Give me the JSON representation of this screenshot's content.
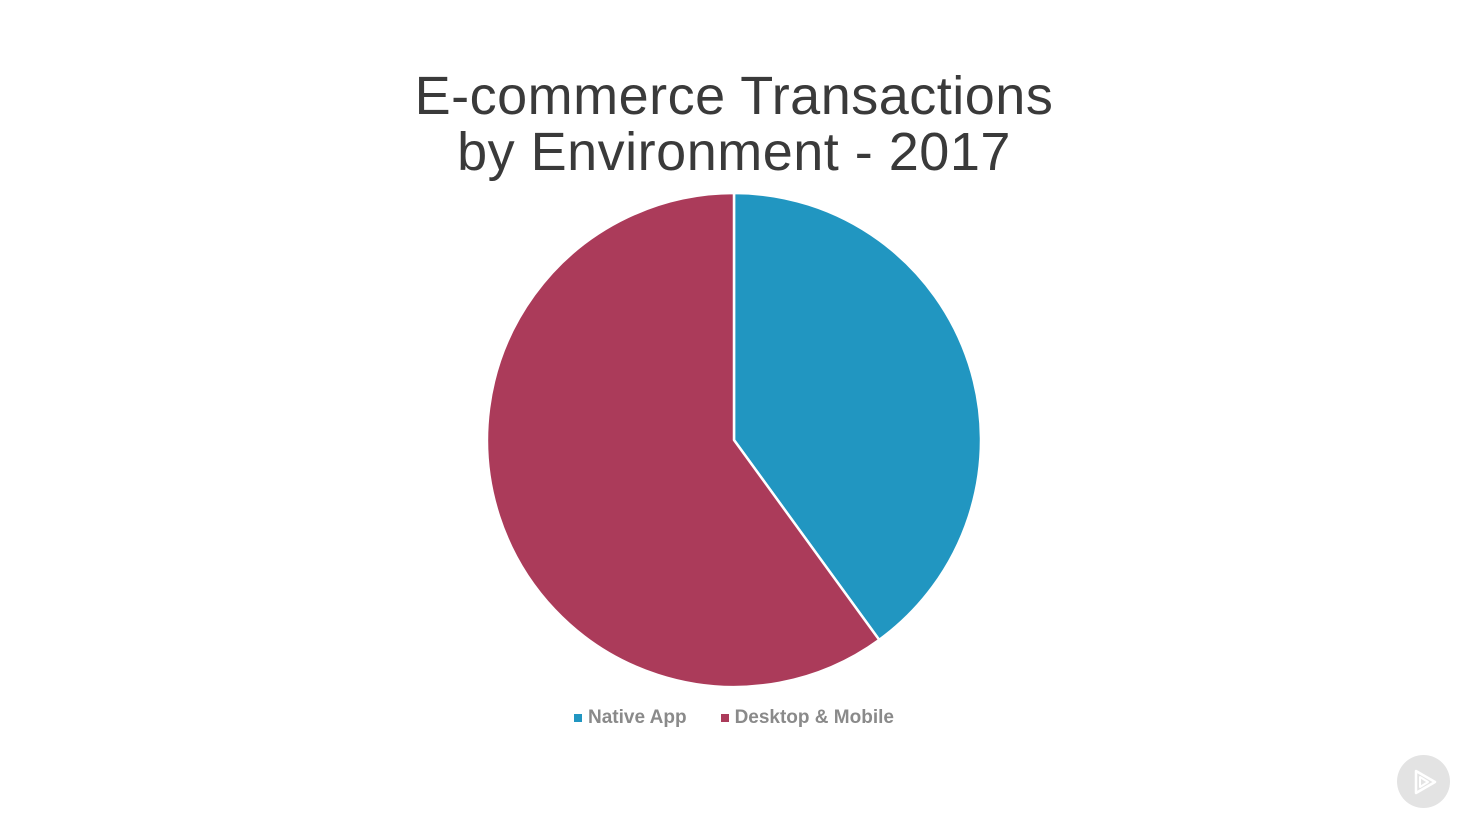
{
  "chart_data": {
    "type": "pie",
    "title_lines": [
      "E-commerce Transactions",
      "by Environment - 2017"
    ],
    "slices": [
      {
        "label": "Native App",
        "value": 40,
        "color": "#2196c1"
      },
      {
        "label": "Desktop & Mobile",
        "value": 60,
        "color": "#ab3b5a"
      }
    ],
    "legend_position": "bottom",
    "start_angle_deg": 0,
    "direction": "clockwise"
  },
  "controls": {
    "play_icon": "play-logo-icon"
  }
}
